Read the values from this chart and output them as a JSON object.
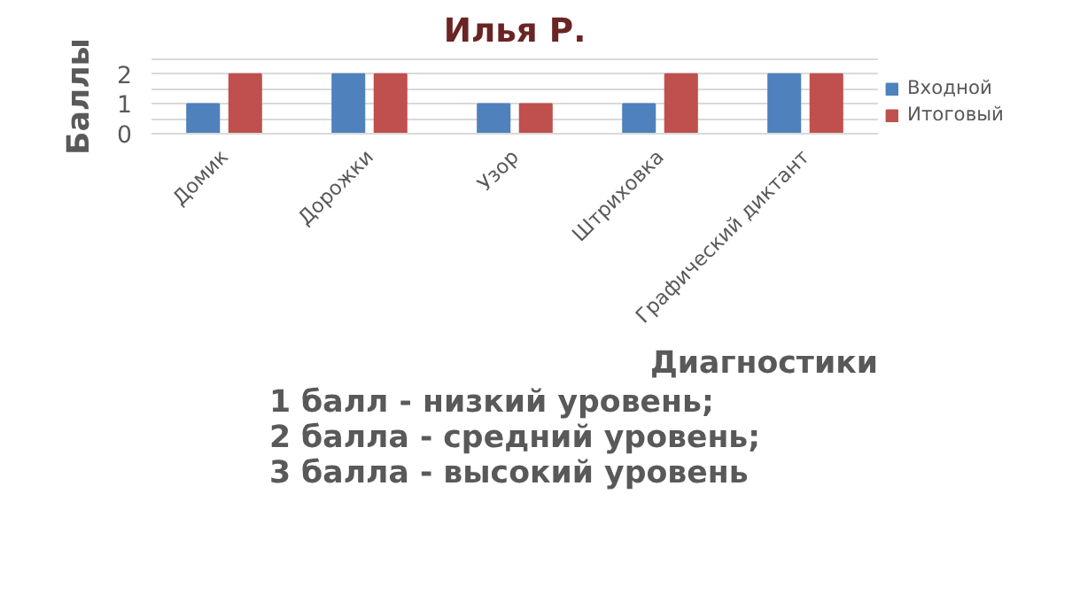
{
  "chart_data": {
    "type": "bar",
    "title": "Илья Р.",
    "xlabel": "Диагностики",
    "ylabel": "Баллы",
    "categories": [
      "Домик",
      "Дорожки",
      "Узор",
      "Штриховка",
      "Графический диктант"
    ],
    "series": [
      {
        "name": "Входной",
        "color": "#4f81bd",
        "values": [
          1,
          2,
          1,
          1,
          2
        ]
      },
      {
        "name": "Итоговый",
        "color": "#c0504d",
        "values": [
          2,
          2,
          1,
          2,
          2
        ]
      }
    ],
    "ylim": [
      0,
      2.5
    ],
    "yticks": [
      0,
      {
        "value": 0.5,
        "label": null
      },
      1,
      {
        "value": 1.5,
        "label": null
      },
      2,
      {
        "value": 2.5,
        "label": null
      }
    ],
    "grid": "y",
    "legend": "right",
    "annotations": [
      "1 балл - низкий уровень;\n2 балла - средний уровень;\n3 балла - высокий уровень"
    ]
  }
}
